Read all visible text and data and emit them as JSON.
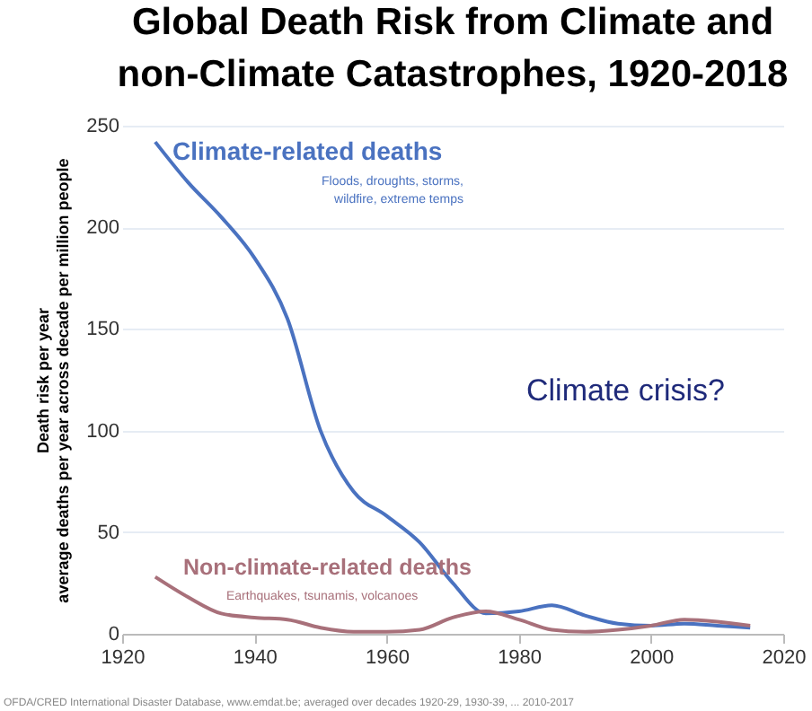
{
  "chart_data": {
    "type": "line",
    "title": "Global Death Risk from Climate and non-Climate Catastrophes, 1920-2018",
    "ylabel": "Death risk per year\naverage deaths per year across decade per million people",
    "x": [
      1925,
      1930,
      1935,
      1940,
      1945,
      1950,
      1955,
      1960,
      1965,
      1970,
      1975,
      1980,
      1985,
      1990,
      1995,
      2000,
      2005,
      2010,
      2015
    ],
    "series": [
      {
        "name": "Climate-related deaths",
        "color": "#4a72c0",
        "values": [
          242,
          222,
          205,
          185,
          155,
          100,
          70,
          58,
          45,
          25,
          10,
          11,
          14,
          9,
          5,
          4,
          5,
          4,
          3
        ]
      },
      {
        "name": "Non-climate-related deaths",
        "color": "#a8707a",
        "values": [
          28,
          18,
          10,
          8,
          7,
          3,
          1,
          1,
          2,
          8,
          11,
          7,
          2,
          1,
          2,
          4,
          7,
          6,
          4
        ]
      }
    ],
    "annotations": [
      "Floods, droughts, storms,\nwildfire, extreme temps",
      "Earthquakes, tsunamis, volcanoes",
      "Climate crisis?",
      "OFDA/CRED International Disaster Database, www.emdat.be; averaged over decades 1920-29, 1930-39, ... 2010-2017"
    ],
    "xlim": [
      1920,
      2020
    ],
    "xticks": [
      1920,
      1940,
      1960,
      1980,
      2000,
      2020
    ],
    "ylim": [
      0,
      250
    ],
    "yticks": [
      0,
      50,
      100,
      150,
      200,
      250
    ],
    "grid": "y",
    "marker": "none",
    "line_style": "solid"
  }
}
